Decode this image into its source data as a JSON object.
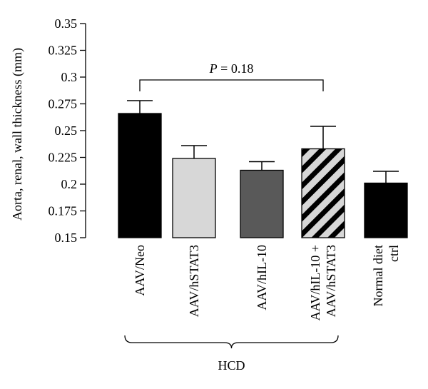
{
  "chart_data": {
    "type": "bar",
    "categories": [
      "AAV/Neo",
      "AAV/hSTAT3",
      "AAV/hIL-10",
      "AAV/hIL-10 + AAV/hSTAT3",
      "Normal diet ctrl"
    ],
    "category_lines": [
      [
        "AAV/Neo"
      ],
      [
        "AAV/hSTAT3"
      ],
      [
        "AAV/hIL-10"
      ],
      [
        "AAV/hIL-10 +",
        "AAV/hSTAT3"
      ],
      [
        "Normal diet",
        "ctrl"
      ]
    ],
    "values": [
      0.266,
      0.224,
      0.213,
      0.233,
      0.201
    ],
    "error_upper": [
      0.012,
      0.012,
      0.008,
      0.021,
      0.011
    ],
    "bar_fills": [
      "#000000",
      "#d7d7d7",
      "#595959",
      "hatch",
      "#000000"
    ],
    "ylabel": "Aorta, renal, wall thickness (mm)",
    "ylim": [
      0.15,
      0.35
    ],
    "yticks": [
      0.15,
      0.175,
      0.2,
      0.225,
      0.25,
      0.275,
      0.3,
      0.325,
      0.35
    ],
    "ytick_labels": [
      "0.15",
      "0.175",
      "0.2",
      "0.225",
      "0.25",
      "0.275",
      "0.3",
      "0.325",
      "0.35"
    ],
    "grid": false,
    "annotation": {
      "p_symbol": "P",
      "p_rest": " = 0.18",
      "from": 0,
      "to": 3
    },
    "group_bracket": {
      "label": "HCD",
      "from": 0,
      "to": 3
    }
  }
}
